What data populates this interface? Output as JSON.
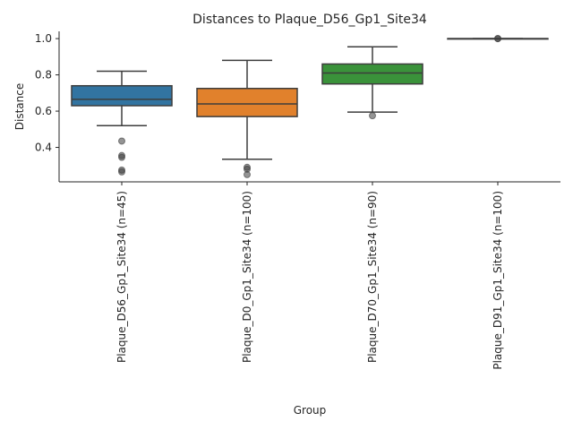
{
  "chart_data": {
    "type": "box",
    "title": "Distances to Plaque_D56_Gp1_Site34",
    "xlabel": "Group",
    "ylabel": "Distance",
    "ylim": [
      0.21,
      1.04
    ],
    "yticks": [
      0.4,
      0.6,
      0.8,
      1.0
    ],
    "ytick_labels": [
      "0.4",
      "0.6",
      "0.8",
      "1.0"
    ],
    "grid": false,
    "categories": [
      "Plaque_D56_Gp1_Site34 (n=45)",
      "Plaque_D0_Gp1_Site34 (n=100)",
      "Plaque_D70_Gp1_Site34 (n=90)",
      "Plaque_D91_Gp1_Site34 (n=100)"
    ],
    "colors": [
      "#3274a1",
      "#e1812c",
      "#3a923a",
      "#c03d3e"
    ],
    "boxes": [
      {
        "q1": 0.63,
        "median": 0.665,
        "q3": 0.74,
        "whisker_low": 0.52,
        "whisker_high": 0.82,
        "outliers": [
          0.435,
          0.355,
          0.345,
          0.275,
          0.265
        ]
      },
      {
        "q1": 0.57,
        "median": 0.64,
        "q3": 0.725,
        "whisker_low": 0.335,
        "whisker_high": 0.88,
        "outliers": [
          0.29,
          0.28,
          0.25
        ]
      },
      {
        "q1": 0.75,
        "median": 0.81,
        "q3": 0.86,
        "whisker_low": 0.595,
        "whisker_high": 0.955,
        "outliers": [
          0.575
        ]
      },
      {
        "q1": 1.0,
        "median": 1.0,
        "q3": 1.0,
        "whisker_low": 1.0,
        "whisker_high": 1.0,
        "outliers": [
          1.0,
          1.0
        ]
      }
    ]
  }
}
